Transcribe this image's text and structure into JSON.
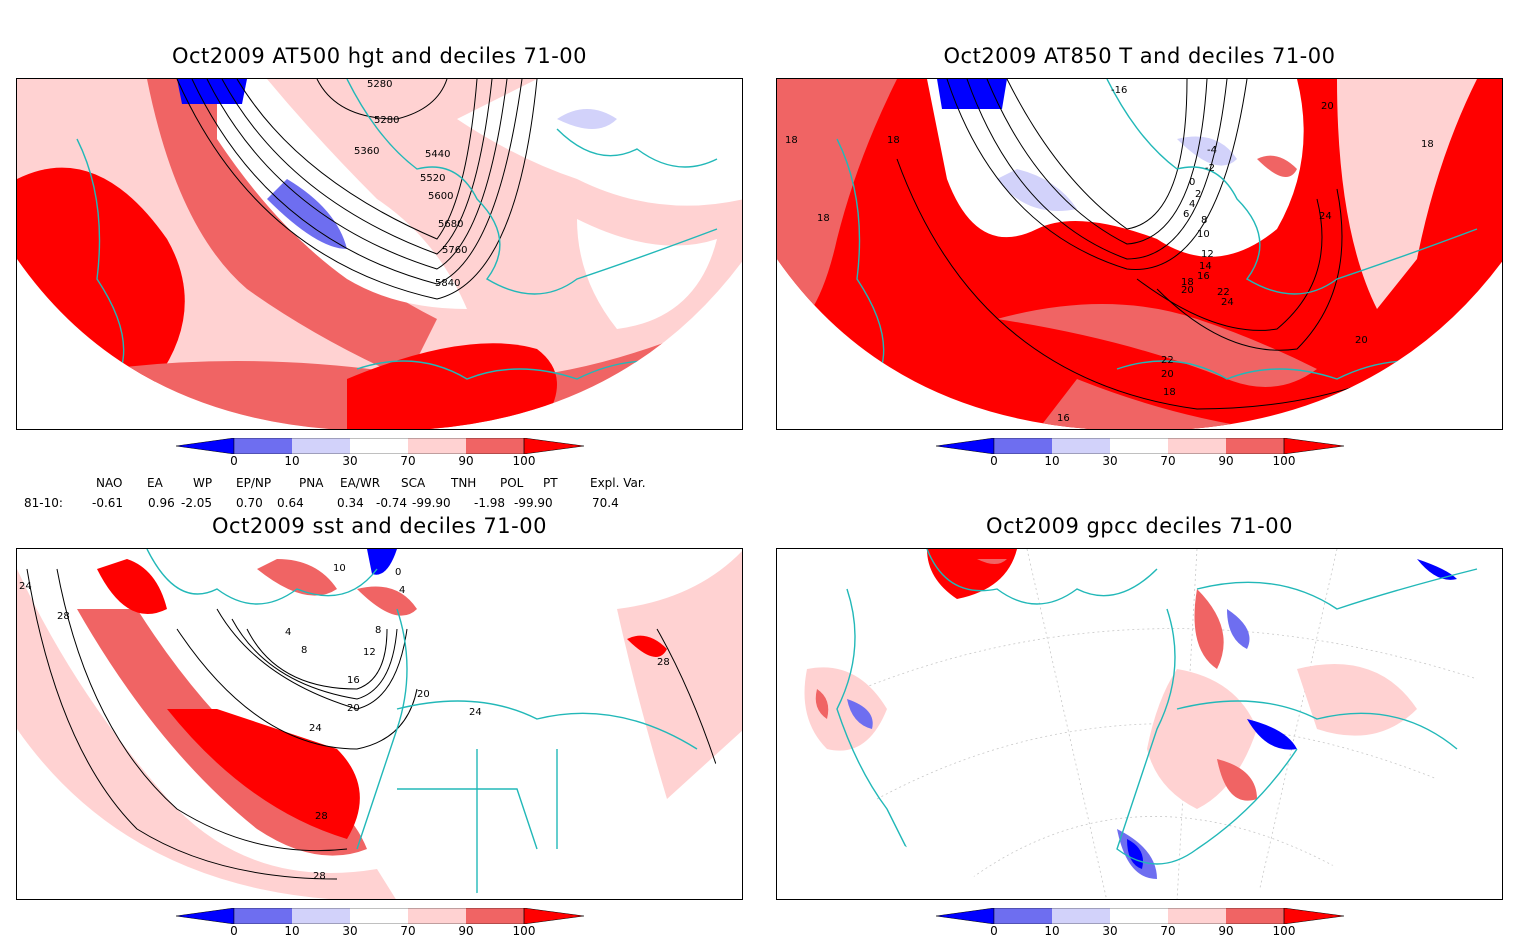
{
  "panels": [
    {
      "title": "Oct2009 AT500 hgt and deciles 71-00",
      "contour_labels": [
        "5280",
        "5280",
        "5360",
        "5440",
        "5520",
        "5600",
        "5680",
        "5760",
        "5840"
      ]
    },
    {
      "title": "Oct2009 AT850 T and deciles 71-00",
      "contour_labels": [
        "-16",
        "18",
        "18",
        "18",
        "18",
        "20",
        "24",
        "-4",
        "-2",
        "0",
        "2",
        "4",
        "6",
        "8",
        "10",
        "12",
        "14",
        "16",
        "18",
        "20",
        "22",
        "24",
        "22",
        "20",
        "18",
        "16",
        "20"
      ]
    },
    {
      "title": "Oct2009 sst and deciles 71-00",
      "contour_labels": [
        "24",
        "28",
        "0",
        "4",
        "4",
        "8",
        "8",
        "12",
        "16",
        "20",
        "20",
        "24",
        "24",
        "28",
        "28",
        "28",
        "10"
      ]
    },
    {
      "title": "Oct2009 gpcc deciles 71-00",
      "contour_labels": []
    }
  ],
  "colorbar": {
    "ticks": [
      "0",
      "10",
      "30",
      "70",
      "90",
      "100"
    ],
    "colors": {
      "deep_blue": "#0000ff",
      "mid_blue": "#6e6ef0",
      "light_blue": "#d2d2fa",
      "white": "#ffffff",
      "light_red": "#ffd2d2",
      "mid_red": "#f06464",
      "deep_red": "#ff0000"
    }
  },
  "indices": {
    "headers": [
      "NAO",
      "EA",
      "WP",
      "EP/NP",
      "PNA",
      "EA/WR",
      "SCA",
      "TNH",
      "POL",
      "PT",
      "Expl. Var."
    ],
    "row_label": "81-10:",
    "values": [
      "-0.61",
      "0.96",
      "-2.05",
      "0.70",
      "0.64",
      "0.34",
      "-0.74",
      "-99.90",
      "-1.98",
      "-99.90",
      "70.4"
    ]
  },
  "map_colors": {
    "coast": "#22b8b8",
    "contour": "#000000"
  }
}
